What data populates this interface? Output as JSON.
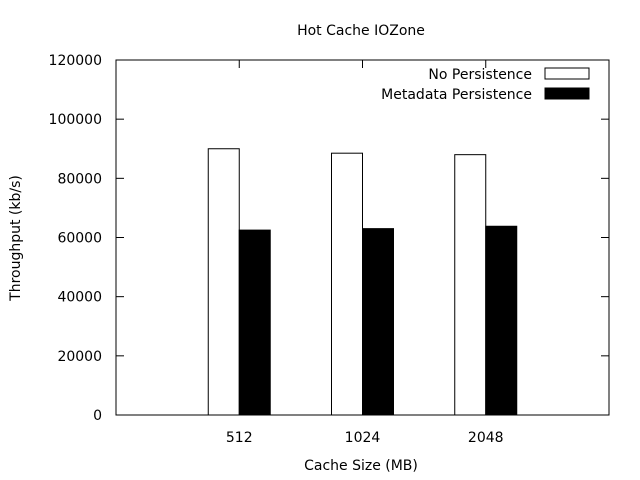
{
  "chart_data": {
    "type": "bar",
    "title": "Hot Cache IOZone",
    "xlabel": "Cache Size (MB)",
    "ylabel": "Throughput (kb/s)",
    "categories": [
      "512",
      "1024",
      "2048"
    ],
    "ylim": [
      0,
      120000
    ],
    "yticks": [
      "0",
      "20000",
      "40000",
      "60000",
      "80000",
      "100000",
      "120000"
    ],
    "legend_position": "top-right",
    "grid": false,
    "series": [
      {
        "name": "No Persistence",
        "values": [
          90000,
          88500,
          88000
        ],
        "color": "#ffffff"
      },
      {
        "name": "Metadata Persistence",
        "values": [
          62500,
          63000,
          63800
        ],
        "color": "#000000"
      }
    ]
  }
}
